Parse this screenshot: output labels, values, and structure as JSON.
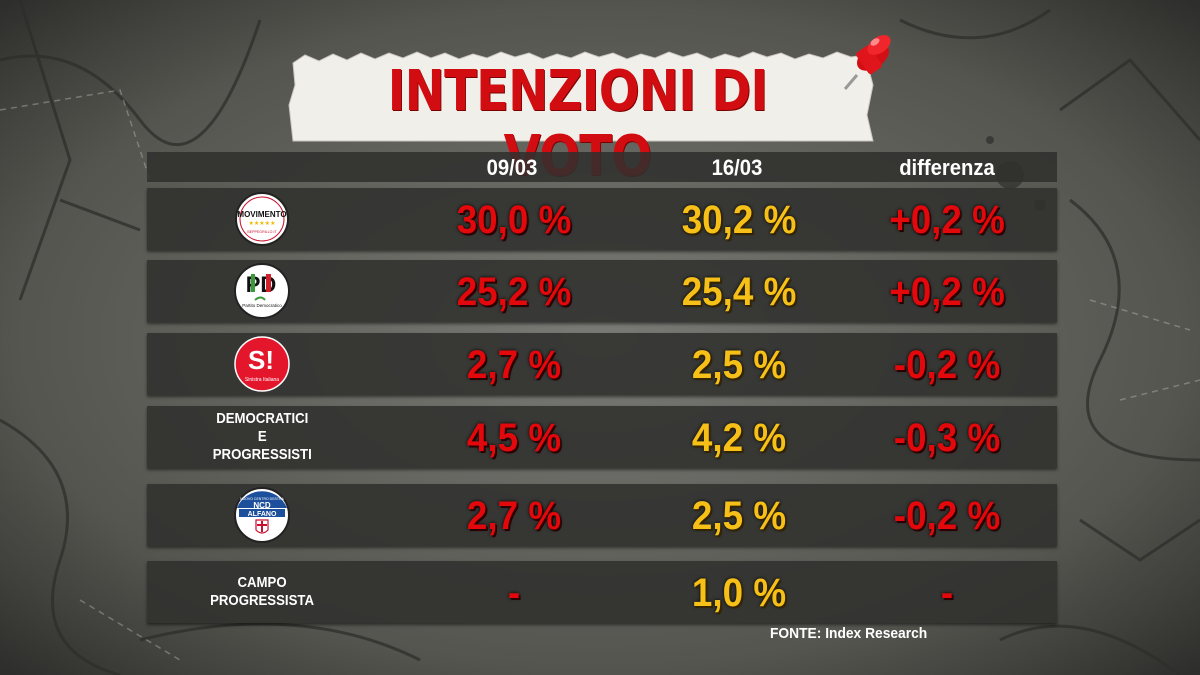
{
  "title": "INTENZIONI DI VOTO",
  "columns": [
    "09/03",
    "16/03",
    "differenza"
  ],
  "source": "FONTE:  Index Research",
  "colors": {
    "value_prev": "#e3080b",
    "value_curr": "#f6c018",
    "difference": "#e3080b",
    "title": "#d20d12"
  },
  "chart_data": {
    "type": "table",
    "title": "INTENZIONI DI VOTO",
    "columns": [
      "09/03",
      "16/03",
      "differenza"
    ],
    "rows": [
      {
        "party": "MoVimento 5 Stelle",
        "logo": "m5s-logo",
        "logo_text": [
          "MOVIMENTO",
          "BEPPEGRILLO.IT"
        ],
        "values": [
          "30,0 %",
          "30,2 %",
          "+0,2 %"
        ],
        "prev": 30.0,
        "curr": 30.2,
        "diff": 0.2
      },
      {
        "party": "Partito Democratico",
        "logo": "pd-logo",
        "logo_text": [
          "PD",
          "Partito Democratico"
        ],
        "values": [
          "25,2 %",
          "25,4 %",
          "+0,2 %"
        ],
        "prev": 25.2,
        "curr": 25.4,
        "diff": 0.2
      },
      {
        "party": "Sinistra Italiana",
        "logo": "si-logo",
        "logo_text": [
          "S!",
          "Sinistra Italiana"
        ],
        "values": [
          "2,7 %",
          "2,5 %",
          "-0,2 %"
        ],
        "prev": 2.7,
        "curr": 2.5,
        "diff": -0.2
      },
      {
        "party": "DEMOCRATICI E PROGRESSISTI",
        "logo": null,
        "label_lines": [
          "DEMOCRATICI",
          "E",
          "PROGRESSISTI"
        ],
        "values": [
          "4,5 %",
          "4,2 %",
          "-0,3 %"
        ],
        "prev": 4.5,
        "curr": 4.2,
        "diff": -0.3
      },
      {
        "party": "Nuovo Centrodestra",
        "logo": "ncd-logo",
        "logo_text": [
          "NUOVO CENTRO DESTRA",
          "NCD",
          "ALFANO"
        ],
        "values": [
          "2,7 %",
          "2,5 %",
          "-0,2 %"
        ],
        "prev": 2.7,
        "curr": 2.5,
        "diff": -0.2
      },
      {
        "party": "CAMPO PROGRESSISTA",
        "logo": null,
        "label_lines": [
          "CAMPO",
          "PROGRESSISTA"
        ],
        "values": [
          "-",
          "1,0 %",
          "-"
        ],
        "prev": null,
        "curr": 1.0,
        "diff": null
      }
    ]
  }
}
